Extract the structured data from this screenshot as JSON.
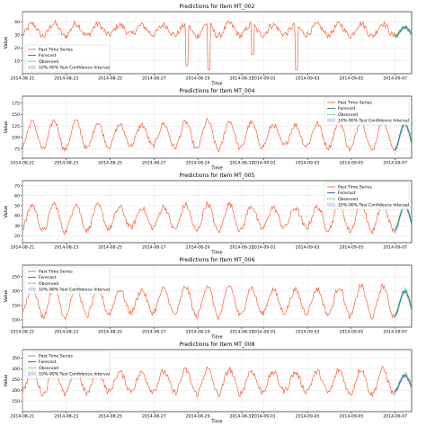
{
  "figure": {
    "xlabel": "Time",
    "ylabel": "Value",
    "x_tick_labels": [
      "2014-08-21",
      "2014-08-23",
      "2014-08-25",
      "2014-08-27",
      "2014-08-29",
      "2014-08-31",
      "2014-09-01",
      "2014-09-03",
      "2014-09-05",
      "2014-09-07"
    ],
    "colors": {
      "past": "#f4623a",
      "forecast": "#1f5fb4",
      "observed": "#2ca02c",
      "interval": "#aec7e8",
      "grid": "#dddddd",
      "axis": "#000000"
    },
    "legend_labels": [
      "Past Time Series",
      "Forecast",
      "Observed",
      "10%-90% Test Confidence Interval"
    ]
  },
  "chart_data": [
    {
      "type": "line",
      "title": "Predictions for Item MT_002",
      "xlabel": "Time",
      "ylabel": "Value",
      "ylim": [
        0,
        48
      ],
      "yticks": [
        10,
        20,
        30,
        40
      ],
      "legend": "lower-left",
      "x_range": [
        "2014-08-21",
        "2014-09-07 18:00"
      ],
      "forecast_start": "2014-09-07",
      "past": {
        "mean": 34,
        "amplitude": 5,
        "noise": 2.5,
        "daily_min_spikes": [
          {
            "date": "2014-08-28",
            "value": 6
          },
          {
            "date": "2014-08-29",
            "value": 3
          },
          {
            "date": "2014-09-02",
            "value": 3
          },
          {
            "date": "2014-08-31",
            "value": 15
          }
        ]
      },
      "forecast": {
        "mean": 32,
        "amplitude": 4
      },
      "observed_offset": 1.5
    },
    {
      "type": "line",
      "title": "Predictions for Item MT_004",
      "xlabel": "Time",
      "ylabel": "Value",
      "ylim": [
        55,
        190
      ],
      "yticks": [
        75,
        100,
        125,
        150,
        175
      ],
      "legend": "upper-right",
      "x_range": [
        "2014-08-21",
        "2014-09-07 18:00"
      ],
      "forecast_start": "2014-09-07",
      "past": {
        "mean": 105,
        "amplitude": 32,
        "noise": 6,
        "daily_min_spikes": []
      },
      "forecast": {
        "mean": 100,
        "amplitude": 30
      },
      "observed_offset": 4
    },
    {
      "type": "line",
      "title": "Predictions for Item MT_005",
      "xlabel": "Time",
      "ylabel": "Value",
      "ylim": [
        13,
        75
      ],
      "yticks": [
        20,
        30,
        40,
        50,
        60,
        70
      ],
      "legend": "upper-right",
      "x_range": [
        "2014-08-21",
        "2014-09-07 18:00"
      ],
      "forecast_start": "2014-09-07",
      "past": {
        "mean": 38,
        "amplitude": 14,
        "noise": 3,
        "daily_min_spikes": []
      },
      "forecast": {
        "mean": 37,
        "amplitude": 13
      },
      "observed_offset": 2
    },
    {
      "type": "line",
      "title": "Predictions for Item MT_006",
      "xlabel": "Time",
      "ylabel": "Value",
      "ylim": [
        75,
        290
      ],
      "yticks": [
        100,
        150,
        200,
        250
      ],
      "legend": "upper-left",
      "x_range": [
        "2014-08-21",
        "2014-09-07 18:00"
      ],
      "forecast_start": "2014-09-07",
      "past": {
        "mean": 165,
        "amplitude": 55,
        "noise": 10,
        "daily_min_spikes": []
      },
      "forecast": {
        "mean": 155,
        "amplitude": 45
      },
      "observed_offset": 8
    },
    {
      "type": "line",
      "title": "Predictions for Item MT_008",
      "xlabel": "Time",
      "ylabel": "Value",
      "ylim": [
        100,
        390
      ],
      "yticks": [
        150,
        200,
        250,
        300,
        350
      ],
      "legend": "upper-left",
      "x_range": [
        "2014-08-21",
        "2014-09-07 18:00"
      ],
      "forecast_start": "2014-09-07",
      "past": {
        "mean": 240,
        "amplitude": 60,
        "noise": 15,
        "daily_min_spikes": []
      },
      "forecast": {
        "mean": 230,
        "amplitude": 40
      },
      "observed_offset": 10
    }
  ]
}
